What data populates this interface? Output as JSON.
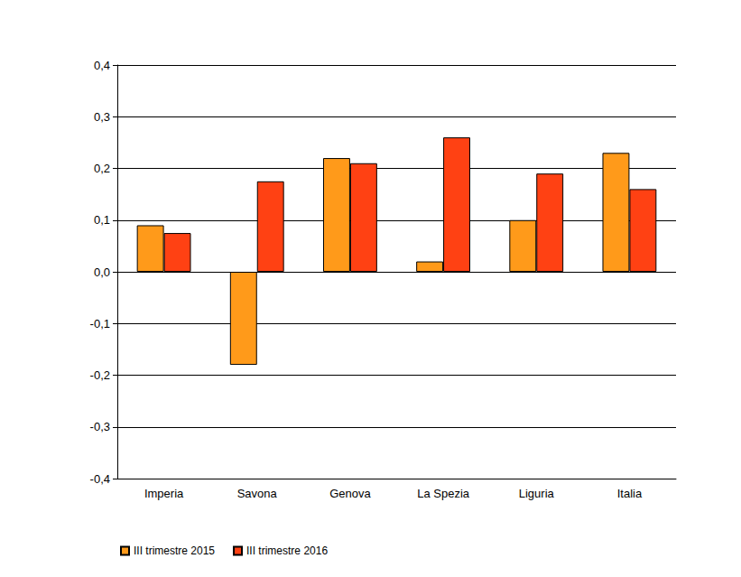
{
  "chart_data": {
    "type": "bar",
    "categories": [
      "Imperia",
      "Savona",
      "Genova",
      "La Spezia",
      "Liguria",
      "Italia"
    ],
    "series": [
      {
        "name": "III trimestre 2015",
        "color": "#ff9a1a",
        "values": [
          0.09,
          -0.18,
          0.22,
          0.02,
          0.1,
          0.23
        ]
      },
      {
        "name": "III trimestre 2016",
        "color": "#ff4113",
        "values": [
          0.075,
          0.175,
          0.21,
          0.26,
          0.19,
          0.16
        ]
      }
    ],
    "ylim": [
      -0.4,
      0.4
    ],
    "yticks": [
      {
        "value": -0.4,
        "label": "-0,4"
      },
      {
        "value": -0.3,
        "label": "-0,3"
      },
      {
        "value": -0.2,
        "label": "-0,2"
      },
      {
        "value": -0.1,
        "label": "-0,1"
      },
      {
        "value": 0,
        "label": "0,0"
      },
      {
        "value": 0.1,
        "label": "0,1"
      },
      {
        "value": 0.2,
        "label": "0,2"
      },
      {
        "value": 0.3,
        "label": "0,3"
      },
      {
        "value": 0.4,
        "label": "0,4"
      }
    ],
    "grid": true,
    "legend": "bottom"
  }
}
